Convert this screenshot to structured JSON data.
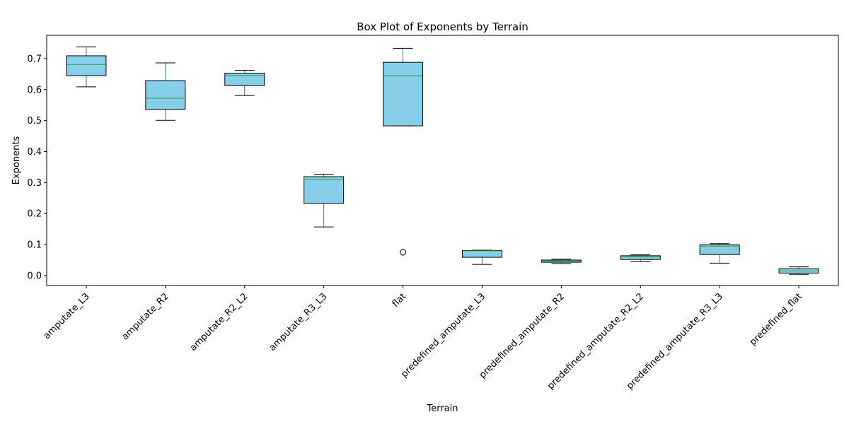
{
  "chart_data": {
    "type": "box",
    "title": "Box Plot of Exponents by Terrain",
    "xlabel": "Terrain",
    "ylabel": "Exponents",
    "ylim": [
      -0.032,
      0.775
    ],
    "yticks": [
      0.0,
      0.1,
      0.2,
      0.3,
      0.4,
      0.5,
      0.6,
      0.7
    ],
    "ytick_labels": [
      "0.0",
      "0.1",
      "0.2",
      "0.3",
      "0.4",
      "0.5",
      "0.6",
      "0.7"
    ],
    "grid": false,
    "legend": "none",
    "categories": [
      "amputate_L3",
      "amputate_R2",
      "amputate_R2_L2",
      "amputate_R3_L3",
      "flat",
      "predefined_amputate_L3",
      "predefined_amputate_R2",
      "predefined_amputate_R2_L2",
      "predefined_amputate_R3_L3",
      "predefined_flat"
    ],
    "boxes": [
      {
        "whislo": 0.609,
        "q1": 0.645,
        "med": 0.681,
        "q3": 0.709,
        "whishi": 0.738,
        "fliers": []
      },
      {
        "whislo": 0.501,
        "q1": 0.536,
        "med": 0.572,
        "q3": 0.629,
        "whishi": 0.686,
        "fliers": []
      },
      {
        "whislo": 0.581,
        "q1": 0.613,
        "med": 0.645,
        "q3": 0.653,
        "whishi": 0.662,
        "fliers": []
      },
      {
        "whislo": 0.157,
        "q1": 0.233,
        "med": 0.31,
        "q3": 0.319,
        "whishi": 0.327,
        "fliers": []
      },
      {
        "whislo": 0.483,
        "q1": 0.483,
        "med": 0.645,
        "q3": 0.688,
        "whishi": 0.733,
        "fliers": [
          0.075
        ]
      },
      {
        "whislo": 0.036,
        "q1": 0.059,
        "med": 0.08,
        "q3": 0.081,
        "whishi": 0.082,
        "fliers": []
      },
      {
        "whislo": 0.039,
        "q1": 0.043,
        "med": 0.047,
        "q3": 0.05,
        "whishi": 0.053,
        "fliers": []
      },
      {
        "whislo": 0.045,
        "q1": 0.052,
        "med": 0.06,
        "q3": 0.064,
        "whishi": 0.067,
        "fliers": []
      },
      {
        "whislo": 0.04,
        "q1": 0.068,
        "med": 0.095,
        "q3": 0.099,
        "whishi": 0.103,
        "fliers": []
      },
      {
        "whislo": 0.004,
        "q1": 0.008,
        "med": 0.015,
        "q3": 0.022,
        "whishi": 0.028,
        "fliers": []
      }
    ],
    "colors": {
      "box_fill": "#87ceeb",
      "box_edge": "#000000",
      "median": "#2ca02c",
      "whisker": "#1f77b4",
      "cap": "#000000"
    }
  }
}
